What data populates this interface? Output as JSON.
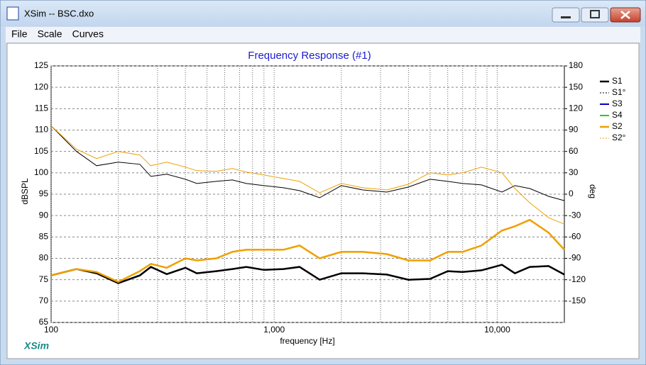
{
  "window": {
    "title": "XSim -- BSC.dxo"
  },
  "menu": [
    "File",
    "Scale",
    "Curves"
  ],
  "watermark": "XSim",
  "chart_data": {
    "type": "line",
    "title": "Frequency Response (#1)",
    "x_label": "frequency [Hz]",
    "y_label": "dBSPL",
    "y2_label": "deg",
    "x_log": true,
    "grid": true,
    "x": [
      100,
      130,
      160,
      200,
      250,
      280,
      330,
      400,
      450,
      550,
      650,
      750,
      900,
      1100,
      1300,
      1600,
      2000,
      2500,
      3200,
      4000,
      5000,
      6000,
      7000,
      8500,
      10500,
      12000,
      14000,
      17000,
      20000
    ],
    "xlim": [
      100,
      20000
    ],
    "xticks": [
      100,
      {
        "value": 1000,
        "label": "1,000"
      },
      {
        "value": 10000,
        "label": "10,000"
      }
    ],
    "xminorticks": [
      200,
      300,
      400,
      500,
      600,
      700,
      800,
      900,
      2000,
      3000,
      4000,
      5000,
      6000,
      7000,
      8000,
      9000
    ],
    "ylim": [
      65,
      125
    ],
    "yticks": [
      65,
      70,
      75,
      80,
      85,
      90,
      95,
      100,
      105,
      110,
      115,
      120,
      125
    ],
    "y2lim": [
      -180,
      180
    ],
    "y2ticks": [
      -150,
      -120,
      -90,
      -60,
      -30,
      0,
      30,
      60,
      90,
      120,
      150,
      180
    ],
    "legend": "right",
    "series": [
      {
        "name": "S3",
        "color": "#0000c0",
        "width": 2,
        "values": [
          76,
          77.5,
          76.5,
          74.2,
          76,
          78,
          76.3,
          77.8,
          76.5,
          77,
          77.5,
          78,
          77.3,
          77.5,
          78,
          75,
          76.5,
          76.5,
          76.2,
          75,
          75.2,
          77,
          76.8,
          77.2,
          78.5,
          76.5,
          78,
          78.2,
          76.2
        ]
      },
      {
        "name": "S4",
        "color": "#20d020",
        "width": 2,
        "values": [
          76,
          77.5,
          76.8,
          74.5,
          77,
          78.7,
          77.8,
          80,
          79.5,
          80,
          81.5,
          82,
          82,
          82,
          83,
          80,
          81.5,
          81.5,
          81,
          79.5,
          79.5,
          81.5,
          81.5,
          83,
          86.5,
          87.5,
          89,
          86,
          82
        ]
      },
      {
        "name": "S1",
        "color": "#000000",
        "width": 2.5,
        "values": [
          76,
          77.5,
          76.5,
          74.2,
          76,
          78,
          76.3,
          77.8,
          76.5,
          77,
          77.5,
          78,
          77.3,
          77.5,
          78,
          75,
          76.5,
          76.5,
          76.2,
          75,
          75.2,
          77,
          76.8,
          77.2,
          78.5,
          76.5,
          78,
          78.2,
          76.2
        ]
      },
      {
        "name": "S1°",
        "color": "#000000",
        "width": 1,
        "axis": "y2",
        "values": [
          96,
          60,
          40,
          45,
          42,
          25,
          28,
          21,
          15,
          18,
          20,
          15,
          12,
          9,
          5,
          -5,
          12,
          6,
          3,
          10,
          21,
          18,
          15,
          13,
          3,
          12,
          8,
          -3,
          -9
        ]
      },
      {
        "name": "S2",
        "color": "#f0a000",
        "width": 2.5,
        "values": [
          76,
          77.5,
          76.8,
          74.5,
          77,
          78.7,
          77.8,
          80,
          79.5,
          80,
          81.5,
          82,
          82,
          82,
          83,
          80,
          81.5,
          81.5,
          81,
          79.5,
          79.5,
          81.5,
          81.5,
          83,
          86.5,
          87.5,
          89,
          86,
          82
        ]
      },
      {
        "name": "S2°",
        "color": "#f0a000",
        "width": 1,
        "axis": "y2",
        "values": [
          96,
          63,
          50,
          60,
          55,
          40,
          45,
          38,
          33,
          32,
          36,
          31,
          27,
          22,
          18,
          2,
          15,
          9,
          6,
          14,
          30,
          27,
          30,
          38,
          30,
          8,
          -12,
          -33,
          -42
        ]
      }
    ]
  }
}
